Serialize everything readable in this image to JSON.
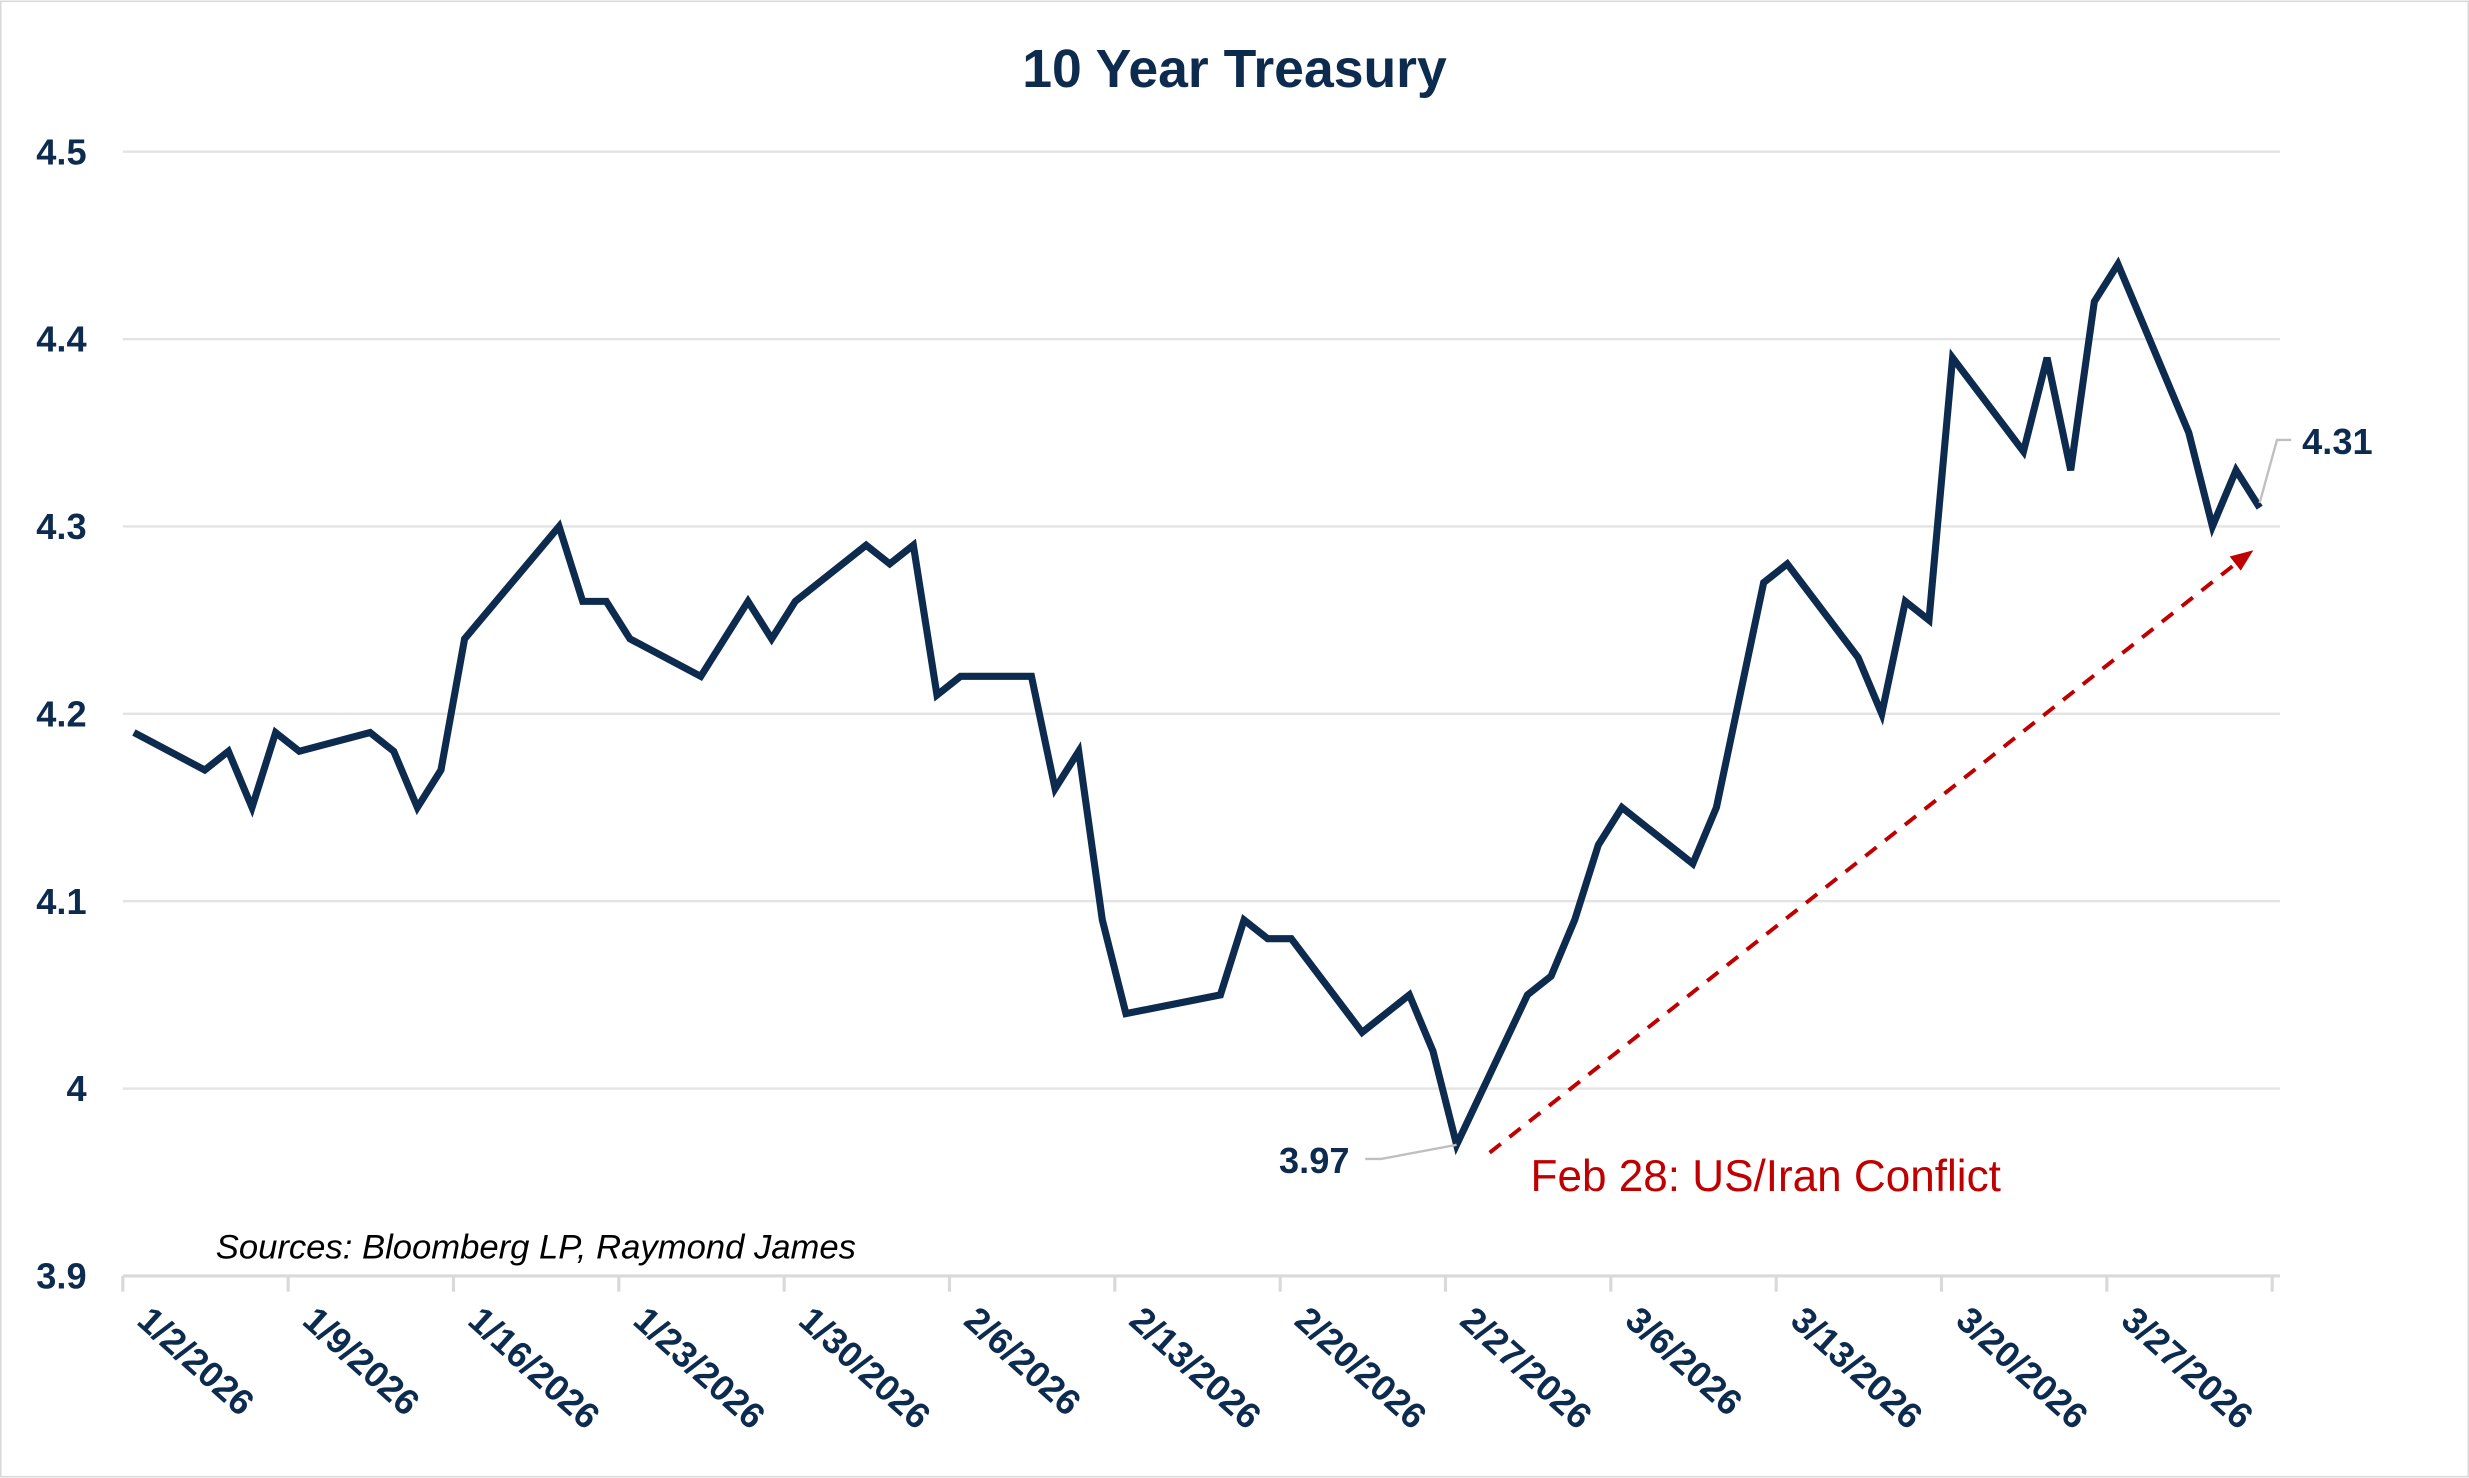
{
  "chart_data": {
    "type": "line",
    "title": "10 Year Treasury",
    "xlabel": "",
    "ylabel": "",
    "ylim": [
      3.9,
      4.5
    ],
    "yticks": [
      "4.5",
      "4.4",
      "4.3",
      "4.2",
      "4.1",
      "4",
      "3.9"
    ],
    "xlim": [
      "1/2/2026",
      "4/3/2026"
    ],
    "xticks": [
      "1/2/2026",
      "1/9/2026",
      "1/16/2026",
      "1/23/2026",
      "1/30/2026",
      "2/6/2026",
      "2/13/2026",
      "2/20/2026",
      "2/27/2026",
      "3/6/2026",
      "3/13/2026",
      "3/20/2026",
      "3/27/2026"
    ],
    "grid": "horizontal",
    "line_color": "#0d2b4e",
    "series": [
      {
        "x": [
          "1/2/2026",
          "1/5/2026",
          "1/6/2026",
          "1/7/2026",
          "1/8/2026",
          "1/9/2026",
          "1/12/2026",
          "1/13/2026",
          "1/14/2026",
          "1/15/2026",
          "1/16/2026",
          "1/20/2026",
          "1/21/2026",
          "1/22/2026",
          "1/23/2026",
          "1/26/2026",
          "1/27/2026",
          "1/28/2026",
          "1/29/2026",
          "1/30/2026",
          "2/2/2026",
          "2/3/2026",
          "2/4/2026",
          "2/5/2026",
          "2/6/2026",
          "2/9/2026",
          "2/10/2026",
          "2/11/2026",
          "2/12/2026",
          "2/13/2026",
          "2/17/2026",
          "2/18/2026",
          "2/19/2026",
          "2/20/2026",
          "2/23/2026",
          "2/24/2026",
          "2/25/2026",
          "2/26/2026",
          "2/27/2026",
          "3/2/2026",
          "3/3/2026",
          "3/4/2026",
          "3/5/2026",
          "3/6/2026",
          "3/9/2026",
          "3/10/2026",
          "3/11/2026",
          "3/12/2026",
          "3/13/2026",
          "3/16/2026",
          "3/17/2026",
          "3/18/2026",
          "3/19/2026",
          "3/20/2026",
          "3/23/2026",
          "3/24/2026",
          "3/25/2026",
          "3/26/2026",
          "3/27/2026",
          "3/30/2026",
          "3/31/2026",
          "4/1/2026",
          "4/2/2026"
        ],
        "values": [
          4.19,
          4.17,
          4.18,
          4.15,
          4.19,
          4.18,
          4.19,
          4.18,
          4.15,
          4.17,
          4.24,
          4.3,
          4.26,
          4.26,
          4.24,
          4.22,
          4.24,
          4.26,
          4.24,
          4.26,
          4.29,
          4.28,
          4.29,
          4.21,
          4.22,
          4.22,
          4.16,
          4.18,
          4.09,
          4.04,
          4.05,
          4.09,
          4.08,
          4.08,
          4.03,
          4.04,
          4.05,
          4.02,
          3.97,
          4.05,
          4.06,
          4.09,
          4.13,
          4.15,
          4.12,
          4.15,
          4.21,
          4.27,
          4.28,
          4.23,
          4.2,
          4.26,
          4.25,
          4.39,
          4.34,
          4.39,
          4.33,
          4.42,
          4.44,
          4.35,
          4.3,
          4.33,
          4.31
        ]
      }
    ],
    "annotations": {
      "min_label": "3.97",
      "last_label": "4.31",
      "event_label": "Feb 28: US/Iran Conflict",
      "event_color": "#c00000",
      "source": "Sources: Bloomberg LP, Raymond James"
    }
  }
}
